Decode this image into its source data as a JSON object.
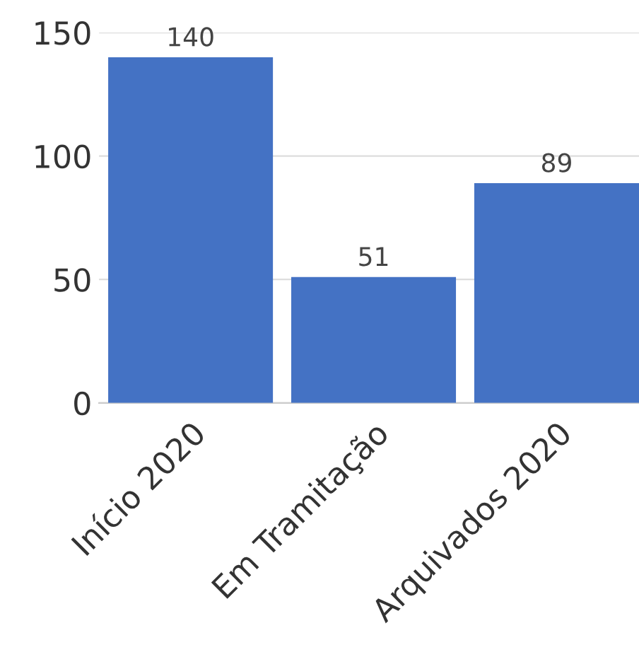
{
  "chart_data": {
    "type": "bar",
    "categories": [
      "Início 2020",
      "Em Tramitação",
      "Arquivados 2020"
    ],
    "values": [
      140,
      51,
      89
    ],
    "color": "#4472c4",
    "ylim": [
      0,
      150
    ],
    "yticks": [
      0,
      50,
      100,
      150
    ],
    "grid": "y",
    "data_labels": true,
    "legend": false
  }
}
